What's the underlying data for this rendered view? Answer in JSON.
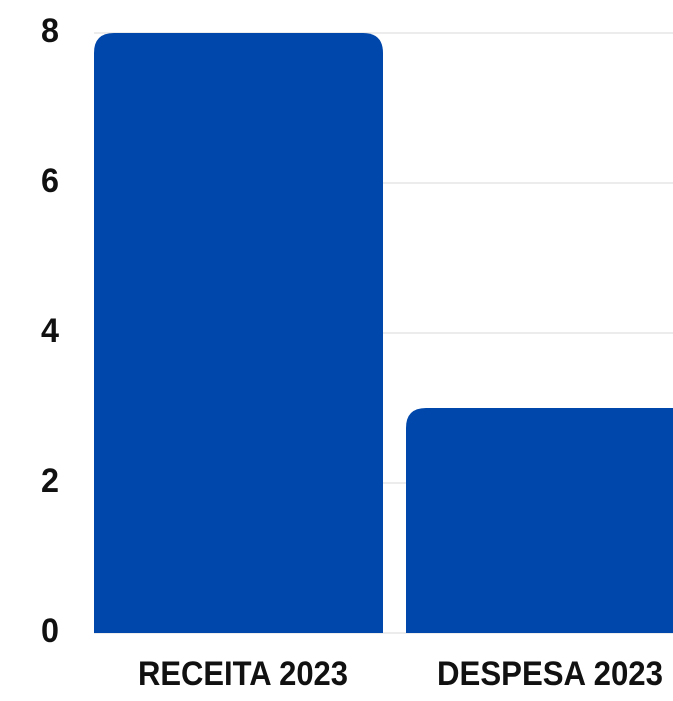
{
  "chart_data": {
    "type": "bar",
    "categories": [
      "RECEITA 2023",
      "DESPESA 2023"
    ],
    "values": [
      8,
      3
    ],
    "ylim": [
      0,
      8
    ],
    "yticks": [
      "0",
      "2",
      "4",
      "6",
      "8"
    ],
    "title": "",
    "xlabel": "",
    "ylabel": "",
    "grid": true,
    "legend": "none",
    "colors": {
      "bar": "#0047AB",
      "grid": "#D9D9D9",
      "text": "#111111"
    }
  }
}
